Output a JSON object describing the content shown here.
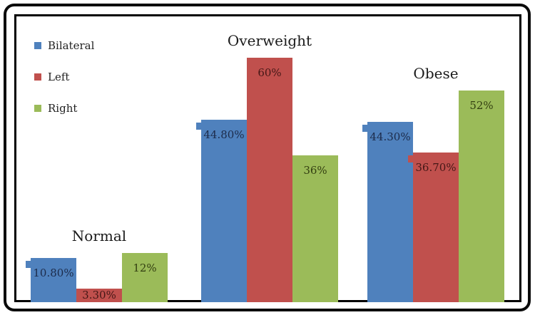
{
  "chart_data": {
    "type": "bar",
    "title": "",
    "xlabel": "",
    "ylabel": "",
    "categories": [
      "Normal",
      "Overweight",
      "Obese"
    ],
    "series": [
      {
        "name": "Bilateral",
        "color": "#4f81bd",
        "label_color": "#1c2b4a",
        "values": [
          10.8,
          44.8,
          44.3
        ],
        "labels": [
          "10.80%",
          "44.80%",
          "44.30%"
        ]
      },
      {
        "name": "Left",
        "color": "#c0504d",
        "label_color": "#441716",
        "values": [
          3.3,
          60,
          36.7
        ],
        "labels": [
          "3.30%",
          "60%",
          "36.70%"
        ]
      },
      {
        "name": "Right",
        "color": "#9bbb59",
        "label_color": "#333f11",
        "values": [
          12,
          36,
          52
        ],
        "labels": [
          "12%",
          "36%",
          "52%"
        ]
      }
    ],
    "ylim": [
      0,
      70.5
    ],
    "grid": false,
    "legend_position": "top-left",
    "frame_border_color": "#0a0a0a",
    "plot_border_color": "#000000",
    "background": "#ffffff"
  }
}
